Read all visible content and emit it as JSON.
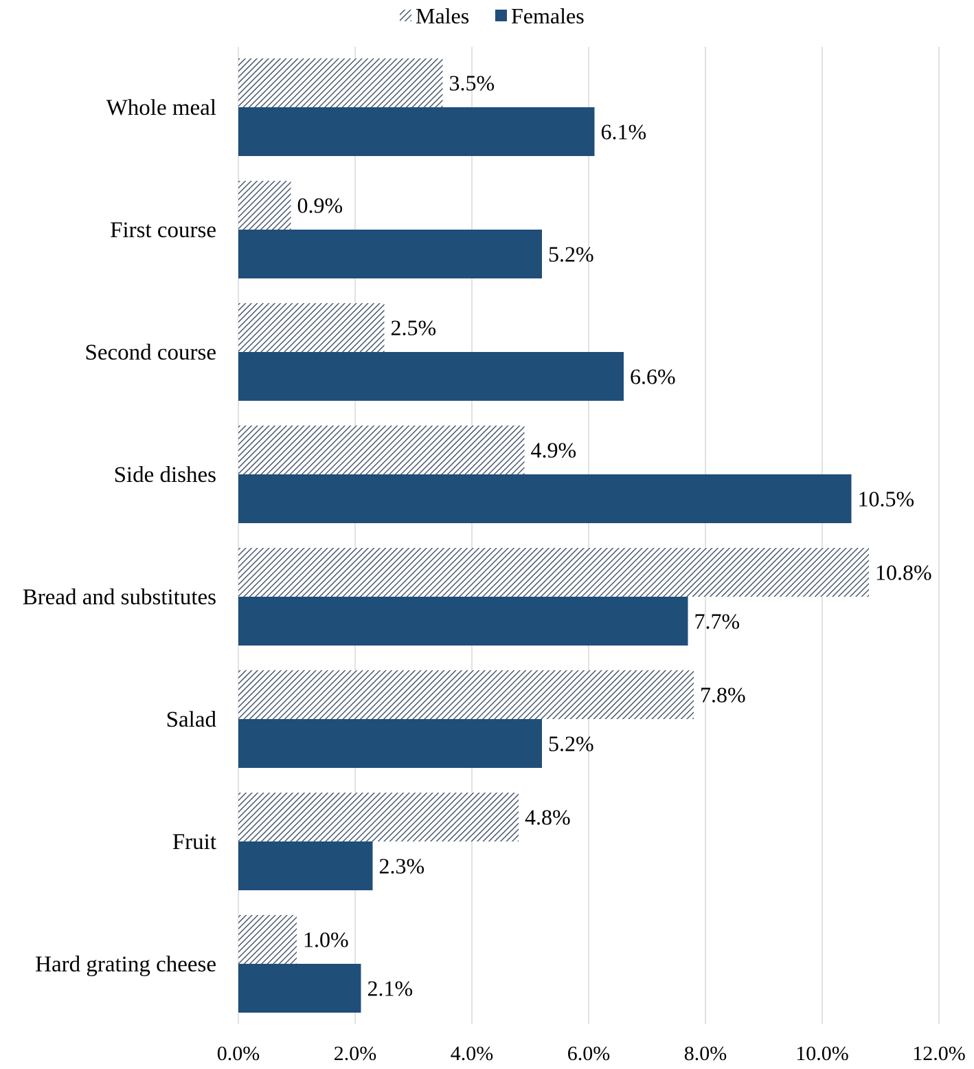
{
  "chart_data": {
    "type": "bar",
    "orientation": "horizontal",
    "title": "",
    "xlabel": "",
    "ylabel": "",
    "categories": [
      "Whole meal",
      "First course",
      "Second course",
      "Side dishes",
      "Bread and substitutes",
      "Salad",
      "Fruit",
      "Hard grating cheese"
    ],
    "series": [
      {
        "name": "Males",
        "values": [
          3.5,
          0.9,
          2.5,
          4.9,
          10.8,
          7.8,
          4.8,
          1.0
        ],
        "labels": [
          "3.5%",
          "0.9%",
          "2.5%",
          "4.9%",
          "10.8%",
          "7.8%",
          "4.8%",
          "1.0%"
        ],
        "color": "#4a5a70",
        "pattern": "diagonal-hatch"
      },
      {
        "name": "Females",
        "values": [
          6.1,
          5.2,
          6.6,
          10.5,
          7.7,
          5.2,
          2.3,
          2.1
        ],
        "labels": [
          "6.1%",
          "5.2%",
          "6.6%",
          "10.5%",
          "7.7%",
          "5.2%",
          "2.3%",
          "2.1%"
        ],
        "color": "#1f4e79",
        "pattern": "solid"
      }
    ],
    "xlim": [
      0,
      12
    ],
    "xticks": [
      0,
      2,
      4,
      6,
      8,
      10,
      12
    ],
    "xtick_labels": [
      "0.0%",
      "2.0%",
      "4.0%",
      "6.0%",
      "8.0%",
      "10.0%",
      "12.0%"
    ],
    "grid": "vertical",
    "legend": "top-center"
  }
}
